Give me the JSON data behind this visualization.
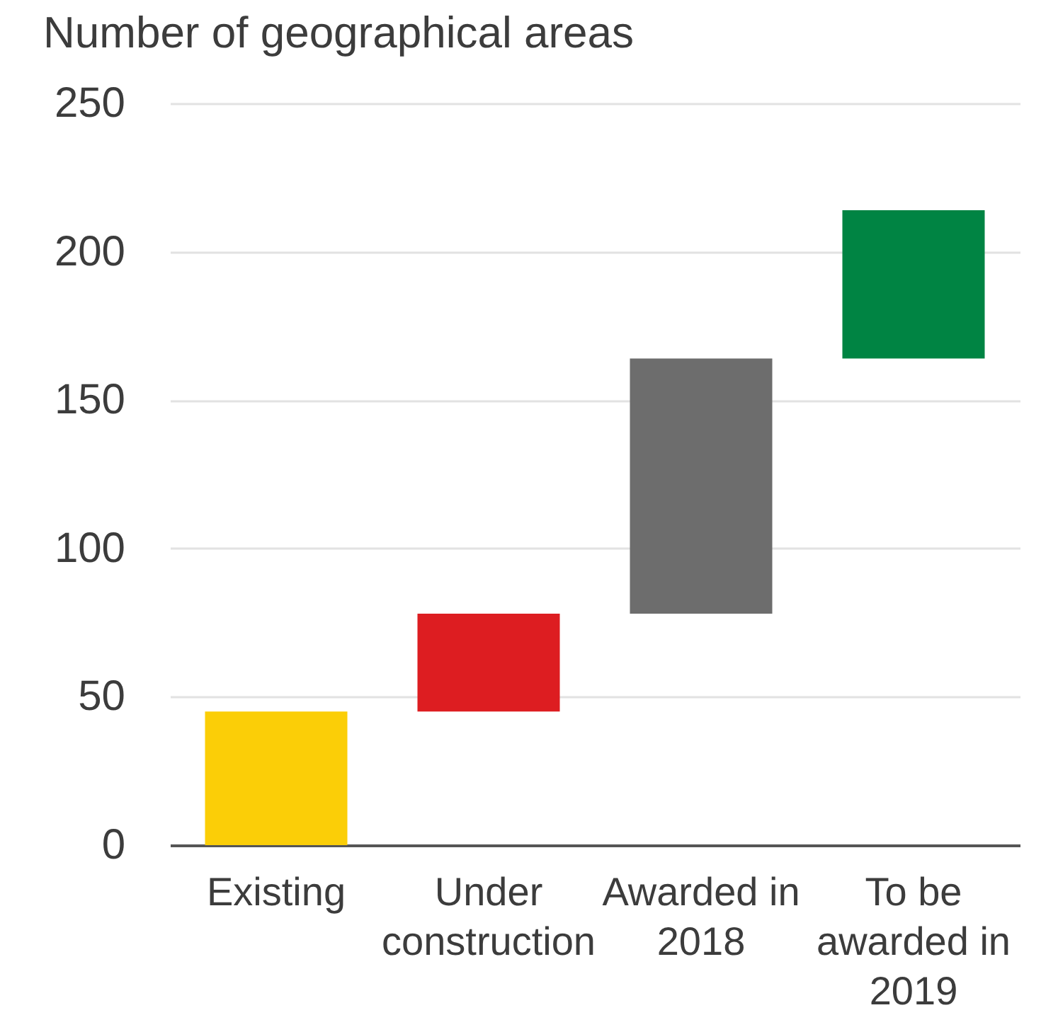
{
  "chart_data": {
    "type": "bar",
    "ylabel": "Number of geographical areas",
    "categories": [
      "Existing",
      "Under construction",
      "Awarded in 2018",
      "To be awarded in 2019"
    ],
    "base": [
      0,
      45,
      78,
      164
    ],
    "values": [
      45,
      33,
      86,
      50
    ],
    "colors": [
      "#fbce07",
      "#dd1d21",
      "#6d6d6d",
      "#008443"
    ],
    "ylim": [
      0,
      250
    ],
    "yticks": [
      0,
      50,
      100,
      150,
      200,
      250
    ],
    "grid": "y"
  }
}
